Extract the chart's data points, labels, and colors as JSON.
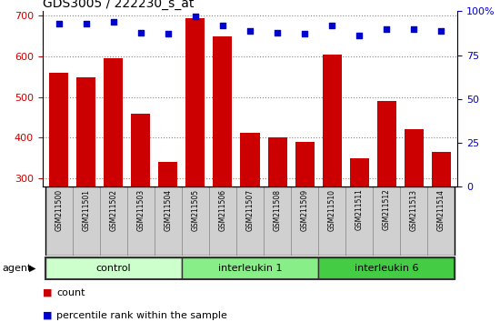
{
  "title": "GDS3005 / 222230_s_at",
  "samples": [
    "GSM211500",
    "GSM211501",
    "GSM211502",
    "GSM211503",
    "GSM211504",
    "GSM211505",
    "GSM211506",
    "GSM211507",
    "GSM211508",
    "GSM211509",
    "GSM211510",
    "GSM211511",
    "GSM211512",
    "GSM211513",
    "GSM211514"
  ],
  "counts": [
    560,
    548,
    595,
    460,
    340,
    693,
    648,
    413,
    400,
    390,
    604,
    350,
    490,
    422,
    365
  ],
  "percentiles": [
    93,
    93,
    94,
    88,
    87,
    97,
    92,
    89,
    88,
    87,
    92,
    86,
    90,
    90,
    89
  ],
  "bar_color": "#cc0000",
  "dot_color": "#0000cc",
  "ylim_left": [
    280,
    710
  ],
  "ylim_right": [
    0,
    100
  ],
  "yticks_left": [
    300,
    400,
    500,
    600,
    700
  ],
  "yticks_right": [
    0,
    25,
    50,
    75,
    100
  ],
  "groups": [
    {
      "label": "control",
      "start": 0,
      "end": 5,
      "color": "#ccffcc"
    },
    {
      "label": "interleukin 1",
      "start": 5,
      "end": 10,
      "color": "#88ee88"
    },
    {
      "label": "interleukin 6",
      "start": 10,
      "end": 15,
      "color": "#44cc44"
    }
  ],
  "agent_label": "agent",
  "legend_count_color": "#cc0000",
  "legend_dot_color": "#0000cc",
  "bg_color": "#ffffff",
  "grid_color": "#888888",
  "tick_label_color_left": "#cc0000",
  "tick_label_color_right": "#0000cc",
  "xtick_cell_color": "#d0d0d0",
  "xtick_cell_border": "#888888"
}
